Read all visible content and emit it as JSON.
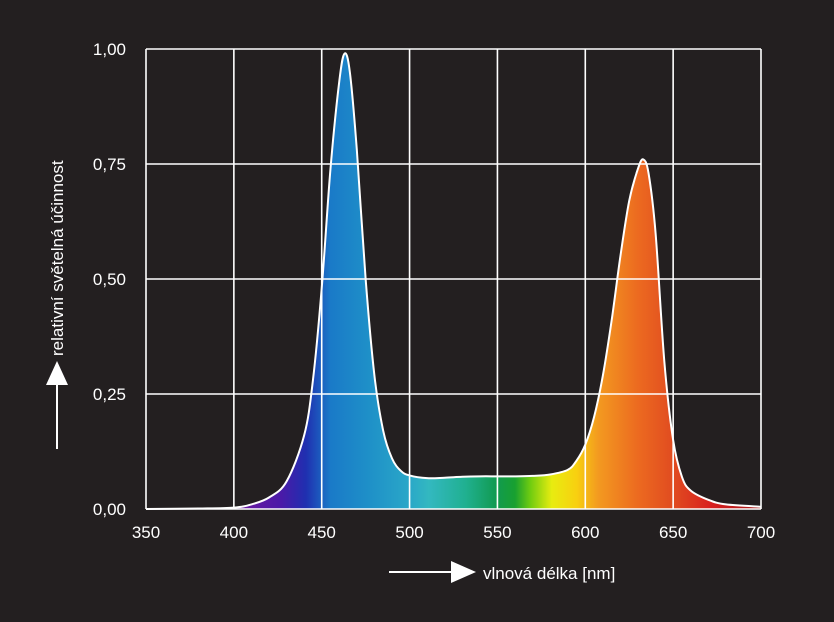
{
  "colors": {
    "background": "#231f20",
    "grid": "#ffffff",
    "text": "#ffffff",
    "curve": "#ffffff"
  },
  "chart_data": {
    "type": "area",
    "title": "",
    "xlabel": "vlnová délka [nm]",
    "ylabel": "relativní světelná účinnost",
    "xlim": [
      350,
      700
    ],
    "ylim": [
      0,
      1
    ],
    "grid": true,
    "legend": "none",
    "x_ticks": [
      350,
      400,
      450,
      500,
      550,
      600,
      650,
      700
    ],
    "x_tick_labels": [
      "350",
      "400",
      "450",
      "500",
      "550",
      "600",
      "650",
      "700"
    ],
    "y_ticks": [
      0,
      0.25,
      0.5,
      0.75,
      1.0
    ],
    "y_tick_labels": [
      "0,00",
      "0,25",
      "0,50",
      "0,75",
      "1,00"
    ],
    "fill": "visible spectrum color gradient (violet → blue → cyan → green → yellow → orange → red)",
    "series": [
      {
        "x": [
          350,
          380,
          400,
          410,
          420,
          430,
          440,
          445,
          450,
          455,
          460,
          463,
          466,
          470,
          475,
          480,
          485,
          490,
          495,
          500,
          510,
          520,
          530,
          540,
          550,
          560,
          570,
          580,
          590,
          595,
          600,
          605,
          610,
          615,
          620,
          625,
          630,
          633,
          636,
          640,
          645,
          650,
          655,
          660,
          670,
          680,
          700
        ],
        "y": [
          0.0,
          0.001,
          0.003,
          0.01,
          0.025,
          0.06,
          0.16,
          0.28,
          0.48,
          0.74,
          0.93,
          0.99,
          0.95,
          0.78,
          0.5,
          0.29,
          0.17,
          0.11,
          0.083,
          0.073,
          0.067,
          0.068,
          0.07,
          0.071,
          0.071,
          0.071,
          0.072,
          0.075,
          0.085,
          0.105,
          0.14,
          0.2,
          0.29,
          0.41,
          0.55,
          0.67,
          0.74,
          0.76,
          0.73,
          0.6,
          0.32,
          0.15,
          0.07,
          0.04,
          0.02,
          0.01,
          0.005
        ]
      }
    ]
  }
}
